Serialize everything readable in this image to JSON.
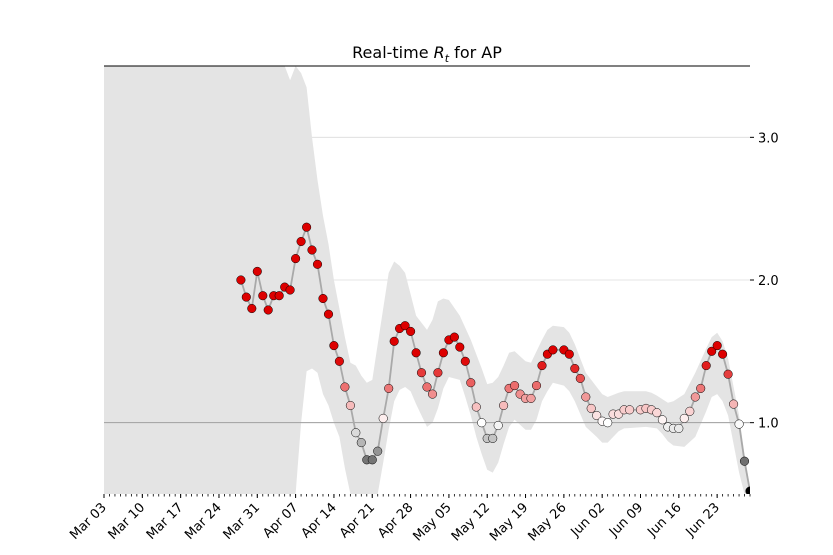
{
  "chart_data": {
    "type": "scatter",
    "title_prefix": "Real-time ",
    "title_symbol": "R",
    "title_subscript": "t",
    "title_suffix": " for AP",
    "xlabel": "",
    "ylabel": "",
    "x_start": "2020-03-03",
    "x_end": "2020-06-29",
    "ylim": [
      0.5,
      3.5
    ],
    "y_ticks": [
      {
        "value": 1.0,
        "label": "1.0"
      },
      {
        "value": 2.0,
        "label": "2.0"
      },
      {
        "value": 3.0,
        "label": "3.0"
      }
    ],
    "x_ticks": [
      {
        "date": "2020-03-03",
        "label": "Mar 03"
      },
      {
        "date": "2020-03-10",
        "label": "Mar 10"
      },
      {
        "date": "2020-03-17",
        "label": "Mar 17"
      },
      {
        "date": "2020-03-24",
        "label": "Mar 24"
      },
      {
        "date": "2020-03-31",
        "label": "Mar 31"
      },
      {
        "date": "2020-04-07",
        "label": "Apr 07"
      },
      {
        "date": "2020-04-14",
        "label": "Apr 14"
      },
      {
        "date": "2020-04-21",
        "label": "Apr 21"
      },
      {
        "date": "2020-04-28",
        "label": "Apr 28"
      },
      {
        "date": "2020-05-05",
        "label": "May 05"
      },
      {
        "date": "2020-05-12",
        "label": "May 12"
      },
      {
        "date": "2020-05-19",
        "label": "May 19"
      },
      {
        "date": "2020-05-26",
        "label": "May 26"
      },
      {
        "date": "2020-06-02",
        "label": "Jun 02"
      },
      {
        "date": "2020-06-09",
        "label": "Jun 09"
      },
      {
        "date": "2020-06-16",
        "label": "Jun 16"
      },
      {
        "date": "2020-06-23",
        "label": "Jun 23"
      }
    ],
    "reference_line": 1.0,
    "grid": "horizontal",
    "colors": {
      "high": "#dd0000",
      "mid": "#ffffff",
      "low": "#000000",
      "band": "#e4e4e4",
      "line": "#a9a9a9",
      "grid": "#dcdcdc",
      "reference": "#a0a0a0"
    },
    "points": [
      {
        "date": "2020-03-28",
        "rt": 2.0
      },
      {
        "date": "2020-03-29",
        "rt": 1.88
      },
      {
        "date": "2020-03-30",
        "rt": 1.8
      },
      {
        "date": "2020-03-31",
        "rt": 2.06
      },
      {
        "date": "2020-04-01",
        "rt": 1.89
      },
      {
        "date": "2020-04-02",
        "rt": 1.79
      },
      {
        "date": "2020-04-03",
        "rt": 1.89
      },
      {
        "date": "2020-04-04",
        "rt": 1.89
      },
      {
        "date": "2020-04-05",
        "rt": 1.95
      },
      {
        "date": "2020-04-06",
        "rt": 1.93
      },
      {
        "date": "2020-04-07",
        "rt": 2.15
      },
      {
        "date": "2020-04-08",
        "rt": 2.27
      },
      {
        "date": "2020-04-09",
        "rt": 2.37
      },
      {
        "date": "2020-04-10",
        "rt": 2.21
      },
      {
        "date": "2020-04-11",
        "rt": 2.11
      },
      {
        "date": "2020-04-12",
        "rt": 1.87
      },
      {
        "date": "2020-04-13",
        "rt": 1.76
      },
      {
        "date": "2020-04-14",
        "rt": 1.54
      },
      {
        "date": "2020-04-15",
        "rt": 1.43
      },
      {
        "date": "2020-04-16",
        "rt": 1.25
      },
      {
        "date": "2020-04-17",
        "rt": 1.12
      },
      {
        "date": "2020-04-18",
        "rt": 0.93
      },
      {
        "date": "2020-04-19",
        "rt": 0.86
      },
      {
        "date": "2020-04-20",
        "rt": 0.74
      },
      {
        "date": "2020-04-21",
        "rt": 0.74
      },
      {
        "date": "2020-04-22",
        "rt": 0.8
      },
      {
        "date": "2020-04-23",
        "rt": 1.03
      },
      {
        "date": "2020-04-24",
        "rt": 1.24
      },
      {
        "date": "2020-04-25",
        "rt": 1.57
      },
      {
        "date": "2020-04-26",
        "rt": 1.66
      },
      {
        "date": "2020-04-27",
        "rt": 1.68
      },
      {
        "date": "2020-04-28",
        "rt": 1.64
      },
      {
        "date": "2020-04-29",
        "rt": 1.49
      },
      {
        "date": "2020-04-30",
        "rt": 1.35
      },
      {
        "date": "2020-05-01",
        "rt": 1.25
      },
      {
        "date": "2020-05-02",
        "rt": 1.2
      },
      {
        "date": "2020-05-03",
        "rt": 1.35
      },
      {
        "date": "2020-05-04",
        "rt": 1.49
      },
      {
        "date": "2020-05-05",
        "rt": 1.58
      },
      {
        "date": "2020-05-06",
        "rt": 1.6
      },
      {
        "date": "2020-05-07",
        "rt": 1.53
      },
      {
        "date": "2020-05-08",
        "rt": 1.43
      },
      {
        "date": "2020-05-09",
        "rt": 1.28
      },
      {
        "date": "2020-05-10",
        "rt": 1.11
      },
      {
        "date": "2020-05-11",
        "rt": 1.0
      },
      {
        "date": "2020-05-12",
        "rt": 0.89
      },
      {
        "date": "2020-05-13",
        "rt": 0.89
      },
      {
        "date": "2020-05-14",
        "rt": 0.98
      },
      {
        "date": "2020-05-15",
        "rt": 1.12
      },
      {
        "date": "2020-05-16",
        "rt": 1.24
      },
      {
        "date": "2020-05-17",
        "rt": 1.26
      },
      {
        "date": "2020-05-18",
        "rt": 1.2
      },
      {
        "date": "2020-05-19",
        "rt": 1.17
      },
      {
        "date": "2020-05-20",
        "rt": 1.17
      },
      {
        "date": "2020-05-21",
        "rt": 1.26
      },
      {
        "date": "2020-05-22",
        "rt": 1.4
      },
      {
        "date": "2020-05-23",
        "rt": 1.48
      },
      {
        "date": "2020-05-24",
        "rt": 1.51
      },
      {
        "date": "2020-05-26",
        "rt": 1.51
      },
      {
        "date": "2020-05-27",
        "rt": 1.48
      },
      {
        "date": "2020-05-28",
        "rt": 1.38
      },
      {
        "date": "2020-05-29",
        "rt": 1.31
      },
      {
        "date": "2020-05-30",
        "rt": 1.18
      },
      {
        "date": "2020-05-31",
        "rt": 1.1
      },
      {
        "date": "2020-06-01",
        "rt": 1.05
      },
      {
        "date": "2020-06-02",
        "rt": 1.01
      },
      {
        "date": "2020-06-03",
        "rt": 1.0
      },
      {
        "date": "2020-06-04",
        "rt": 1.06
      },
      {
        "date": "2020-06-05",
        "rt": 1.06
      },
      {
        "date": "2020-06-06",
        "rt": 1.09
      },
      {
        "date": "2020-06-07",
        "rt": 1.09
      },
      {
        "date": "2020-06-09",
        "rt": 1.09
      },
      {
        "date": "2020-06-10",
        "rt": 1.1
      },
      {
        "date": "2020-06-11",
        "rt": 1.09
      },
      {
        "date": "2020-06-12",
        "rt": 1.07
      },
      {
        "date": "2020-06-13",
        "rt": 1.02
      },
      {
        "date": "2020-06-14",
        "rt": 0.97
      },
      {
        "date": "2020-06-15",
        "rt": 0.96
      },
      {
        "date": "2020-06-16",
        "rt": 0.96
      },
      {
        "date": "2020-06-17",
        "rt": 1.03
      },
      {
        "date": "2020-06-18",
        "rt": 1.08
      },
      {
        "date": "2020-06-19",
        "rt": 1.18
      },
      {
        "date": "2020-06-20",
        "rt": 1.24
      },
      {
        "date": "2020-06-21",
        "rt": 1.4
      },
      {
        "date": "2020-06-22",
        "rt": 1.5
      },
      {
        "date": "2020-06-23",
        "rt": 1.54
      },
      {
        "date": "2020-06-24",
        "rt": 1.48
      },
      {
        "date": "2020-06-25",
        "rt": 1.34
      },
      {
        "date": "2020-06-26",
        "rt": 1.13
      },
      {
        "date": "2020-06-27",
        "rt": 0.99
      },
      {
        "date": "2020-06-28",
        "rt": 0.73
      },
      {
        "date": "2020-06-29",
        "rt": 0.52
      }
    ],
    "credible_interval_upper": [
      {
        "date": "2020-03-03",
        "v": 3.5
      },
      {
        "date": "2020-04-05",
        "v": 3.5
      },
      {
        "date": "2020-04-06",
        "v": 3.4
      },
      {
        "date": "2020-04-07",
        "v": 3.5
      },
      {
        "date": "2020-04-08",
        "v": 3.45
      },
      {
        "date": "2020-04-09",
        "v": 3.35
      },
      {
        "date": "2020-04-10",
        "v": 3.0
      },
      {
        "date": "2020-04-11",
        "v": 2.7
      },
      {
        "date": "2020-04-12",
        "v": 2.45
      },
      {
        "date": "2020-04-13",
        "v": 2.25
      },
      {
        "date": "2020-04-14",
        "v": 2.0
      },
      {
        "date": "2020-04-16",
        "v": 1.6
      },
      {
        "date": "2020-04-17",
        "v": 1.42
      },
      {
        "date": "2020-04-18",
        "v": 1.4
      },
      {
        "date": "2020-04-19",
        "v": 1.33
      },
      {
        "date": "2020-04-20",
        "v": 1.28
      },
      {
        "date": "2020-04-21",
        "v": 1.3
      },
      {
        "date": "2020-04-22",
        "v": 1.55
      },
      {
        "date": "2020-04-23",
        "v": 1.8
      },
      {
        "date": "2020-04-24",
        "v": 2.05
      },
      {
        "date": "2020-04-25",
        "v": 2.13
      },
      {
        "date": "2020-04-26",
        "v": 2.1
      },
      {
        "date": "2020-04-27",
        "v": 2.05
      },
      {
        "date": "2020-04-28",
        "v": 1.9
      },
      {
        "date": "2020-04-29",
        "v": 1.75
      },
      {
        "date": "2020-05-01",
        "v": 1.65
      },
      {
        "date": "2020-05-02",
        "v": 1.72
      },
      {
        "date": "2020-05-03",
        "v": 1.85
      },
      {
        "date": "2020-05-04",
        "v": 1.87
      },
      {
        "date": "2020-05-05",
        "v": 1.86
      },
      {
        "date": "2020-05-07",
        "v": 1.75
      },
      {
        "date": "2020-05-09",
        "v": 1.58
      },
      {
        "date": "2020-05-11",
        "v": 1.38
      },
      {
        "date": "2020-05-12",
        "v": 1.27
      },
      {
        "date": "2020-05-13",
        "v": 1.28
      },
      {
        "date": "2020-05-14",
        "v": 1.32
      },
      {
        "date": "2020-05-15",
        "v": 1.4
      },
      {
        "date": "2020-05-16",
        "v": 1.49
      },
      {
        "date": "2020-05-17",
        "v": 1.5
      },
      {
        "date": "2020-05-19",
        "v": 1.43
      },
      {
        "date": "2020-05-20",
        "v": 1.42
      },
      {
        "date": "2020-05-22",
        "v": 1.58
      },
      {
        "date": "2020-05-23",
        "v": 1.65
      },
      {
        "date": "2020-05-24",
        "v": 1.68
      },
      {
        "date": "2020-05-26",
        "v": 1.67
      },
      {
        "date": "2020-05-27",
        "v": 1.63
      },
      {
        "date": "2020-05-28",
        "v": 1.55
      },
      {
        "date": "2020-05-29",
        "v": 1.45
      },
      {
        "date": "2020-05-30",
        "v": 1.35
      },
      {
        "date": "2020-06-01",
        "v": 1.25
      },
      {
        "date": "2020-06-02",
        "v": 1.2
      },
      {
        "date": "2020-06-03",
        "v": 1.18
      },
      {
        "date": "2020-06-05",
        "v": 1.21
      },
      {
        "date": "2020-06-06",
        "v": 1.22
      },
      {
        "date": "2020-06-10",
        "v": 1.22
      },
      {
        "date": "2020-06-11",
        "v": 1.21
      },
      {
        "date": "2020-06-12",
        "v": 1.19
      },
      {
        "date": "2020-06-14",
        "v": 1.14
      },
      {
        "date": "2020-06-15",
        "v": 1.15
      },
      {
        "date": "2020-06-17",
        "v": 1.2
      },
      {
        "date": "2020-06-19",
        "v": 1.35
      },
      {
        "date": "2020-06-21",
        "v": 1.52
      },
      {
        "date": "2020-06-22",
        "v": 1.6
      },
      {
        "date": "2020-06-23",
        "v": 1.63
      },
      {
        "date": "2020-06-24",
        "v": 1.57
      },
      {
        "date": "2020-06-25",
        "v": 1.45
      },
      {
        "date": "2020-06-26",
        "v": 1.25
      },
      {
        "date": "2020-06-27",
        "v": 1.05
      },
      {
        "date": "2020-06-28",
        "v": 0.78
      },
      {
        "date": "2020-06-29",
        "v": 0.55
      }
    ],
    "credible_interval_lower": [
      {
        "date": "2020-06-29",
        "v": 0.5
      },
      {
        "date": "2020-06-28",
        "v": 0.5
      },
      {
        "date": "2020-06-27",
        "v": 0.65
      },
      {
        "date": "2020-06-26",
        "v": 0.85
      },
      {
        "date": "2020-06-25",
        "v": 1.05
      },
      {
        "date": "2020-06-24",
        "v": 1.15
      },
      {
        "date": "2020-06-23",
        "v": 1.2
      },
      {
        "date": "2020-06-22",
        "v": 1.18
      },
      {
        "date": "2020-06-21",
        "v": 1.08
      },
      {
        "date": "2020-06-19",
        "v": 0.9
      },
      {
        "date": "2020-06-17",
        "v": 0.83
      },
      {
        "date": "2020-06-15",
        "v": 0.84
      },
      {
        "date": "2020-06-14",
        "v": 0.87
      },
      {
        "date": "2020-06-13",
        "v": 0.92
      },
      {
        "date": "2020-06-12",
        "v": 0.96
      },
      {
        "date": "2020-06-10",
        "v": 0.97
      },
      {
        "date": "2020-06-06",
        "v": 0.96
      },
      {
        "date": "2020-06-05",
        "v": 0.94
      },
      {
        "date": "2020-06-03",
        "v": 0.86
      },
      {
        "date": "2020-06-02",
        "v": 0.86
      },
      {
        "date": "2020-06-01",
        "v": 0.9
      },
      {
        "date": "2020-05-30",
        "v": 0.97
      },
      {
        "date": "2020-05-28",
        "v": 1.15
      },
      {
        "date": "2020-05-27",
        "v": 1.22
      },
      {
        "date": "2020-05-26",
        "v": 1.26
      },
      {
        "date": "2020-05-24",
        "v": 1.28
      },
      {
        "date": "2020-05-23",
        "v": 1.22
      },
      {
        "date": "2020-05-22",
        "v": 1.15
      },
      {
        "date": "2020-05-21",
        "v": 1.02
      },
      {
        "date": "2020-05-20",
        "v": 0.95
      },
      {
        "date": "2020-05-19",
        "v": 0.95
      },
      {
        "date": "2020-05-17",
        "v": 1.02
      },
      {
        "date": "2020-05-16",
        "v": 0.97
      },
      {
        "date": "2020-05-15",
        "v": 0.85
      },
      {
        "date": "2020-05-14",
        "v": 0.72
      },
      {
        "date": "2020-05-13",
        "v": 0.65
      },
      {
        "date": "2020-05-12",
        "v": 0.67
      },
      {
        "date": "2020-05-11",
        "v": 0.78
      },
      {
        "date": "2020-05-10",
        "v": 0.9
      },
      {
        "date": "2020-05-09",
        "v": 1.05
      },
      {
        "date": "2020-05-08",
        "v": 1.18
      },
      {
        "date": "2020-05-07",
        "v": 1.3
      },
      {
        "date": "2020-05-05",
        "v": 1.32
      },
      {
        "date": "2020-05-04",
        "v": 1.24
      },
      {
        "date": "2020-05-03",
        "v": 1.1
      },
      {
        "date": "2020-05-02",
        "v": 1.0
      },
      {
        "date": "2020-05-01",
        "v": 0.97
      },
      {
        "date": "2020-04-30",
        "v": 1.05
      },
      {
        "date": "2020-04-29",
        "v": 1.13
      },
      {
        "date": "2020-04-28",
        "v": 1.22
      },
      {
        "date": "2020-04-27",
        "v": 1.25
      },
      {
        "date": "2020-04-26",
        "v": 1.23
      },
      {
        "date": "2020-04-25",
        "v": 1.15
      },
      {
        "date": "2020-04-24",
        "v": 0.95
      },
      {
        "date": "2020-04-23",
        "v": 0.72
      },
      {
        "date": "2020-04-22",
        "v": 0.5
      },
      {
        "date": "2020-04-17",
        "v": 0.5
      },
      {
        "date": "2020-04-16",
        "v": 0.68
      },
      {
        "date": "2020-04-15",
        "v": 0.9
      },
      {
        "date": "2020-04-14",
        "v": 1.0
      },
      {
        "date": "2020-04-13",
        "v": 1.12
      },
      {
        "date": "2020-04-12",
        "v": 1.2
      },
      {
        "date": "2020-04-11",
        "v": 1.35
      },
      {
        "date": "2020-04-10",
        "v": 1.38
      },
      {
        "date": "2020-04-09",
        "v": 1.36
      },
      {
        "date": "2020-04-08",
        "v": 1.0
      },
      {
        "date": "2020-04-07",
        "v": 0.5
      },
      {
        "date": "2020-03-03",
        "v": 0.5
      }
    ]
  }
}
